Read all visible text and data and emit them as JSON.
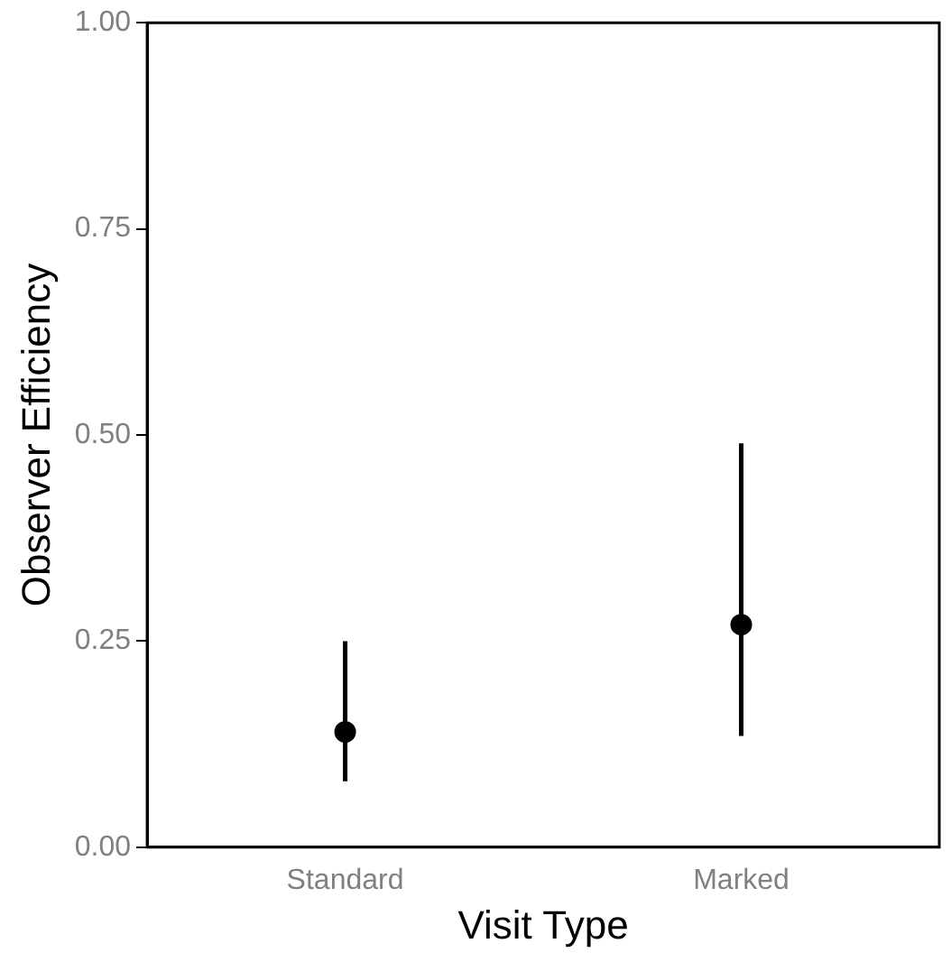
{
  "chart_data": {
    "type": "scatter",
    "xlabel": "Visit Type",
    "ylabel": "Observer Efficiency",
    "categories": [
      "Standard",
      "Marked"
    ],
    "series": [
      {
        "color": "#000000",
        "values": [
          0.14,
          0.27
        ],
        "errors": [
          [
            0.08,
            0.25
          ],
          [
            0.135,
            0.49
          ]
        ]
      }
    ],
    "ylim": [
      0,
      1
    ],
    "yticks": [
      {
        "value": 0,
        "label": "0.00"
      },
      {
        "value": 0.25,
        "label": "0.25"
      },
      {
        "value": 0.5,
        "label": "0.50"
      },
      {
        "value": 0.75,
        "label": "0.75"
      },
      {
        "value": 1,
        "label": "1.00"
      }
    ],
    "grid": false,
    "legend": false,
    "marker": "circle"
  }
}
